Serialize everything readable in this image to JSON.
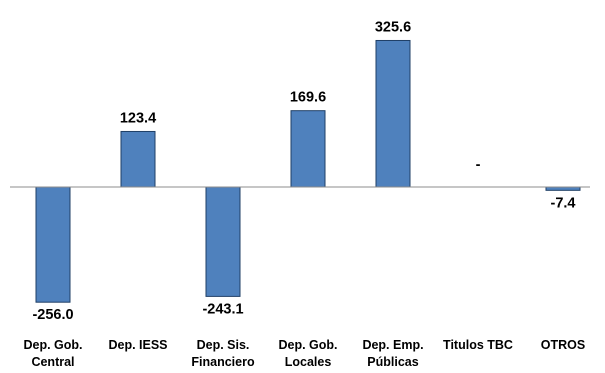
{
  "chart_data": {
    "type": "bar",
    "categories": [
      [
        "Dep. Gob.",
        "Central"
      ],
      [
        "Dep. IESS"
      ],
      [
        "Dep. Sis.",
        "Financiero"
      ],
      [
        "Dep. Gob.",
        "Locales"
      ],
      [
        "Dep. Emp.",
        "Públicas"
      ],
      [
        "Titulos TBC"
      ],
      [
        "OTROS"
      ]
    ],
    "values": [
      -256.0,
      123.4,
      -243.1,
      169.6,
      325.6,
      0,
      -7.4
    ],
    "value_labels": [
      "-256.0",
      "123.4",
      "-243.1",
      "169.6",
      "325.6",
      "-",
      "-7.4"
    ],
    "title": "",
    "xlabel": "",
    "ylabel": "",
    "grid": false,
    "legend": "none",
    "colors": {
      "bar_fill": "#4f81bd",
      "bar_stroke": "#1f3f66",
      "axis": "#8c8c8c"
    }
  }
}
